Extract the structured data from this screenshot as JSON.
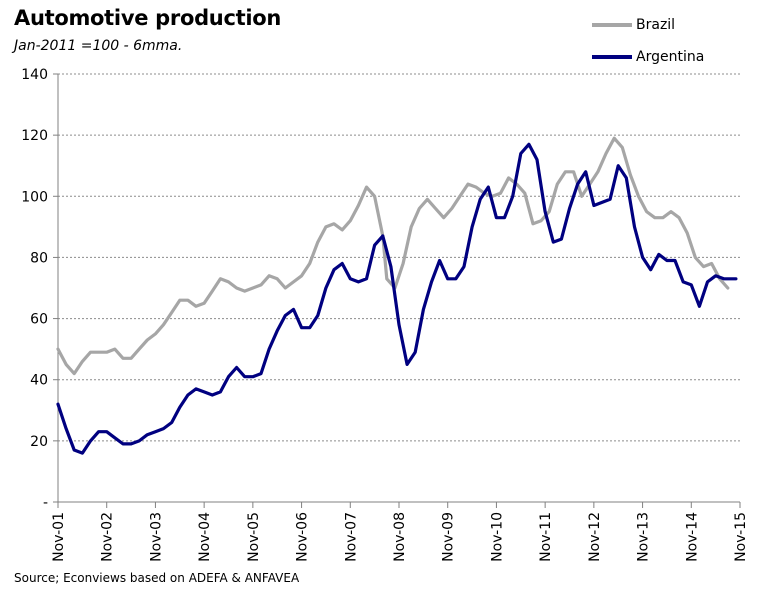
{
  "chart_data": {
    "type": "line",
    "title": "Automotive production",
    "subtitle": "Jan-2011 =100 - 6mma.",
    "source": "Source; Econviews based on ADEFA & ANFAVEA",
    "ylim": [
      0,
      140
    ],
    "yticks": [
      0,
      20,
      40,
      60,
      80,
      100,
      120,
      140
    ],
    "ytick_labels": [
      "-",
      "20",
      "40",
      "60",
      "80",
      "100",
      "120",
      "140"
    ],
    "grid": "horizontal",
    "legend_position": "top-right",
    "x_labels": [
      "Nov-01",
      "Nov-02",
      "Nov-03",
      "Nov-04",
      "Nov-05",
      "Nov-06",
      "Nov-07",
      "Nov-08",
      "Nov-09",
      "Nov-10",
      "Nov-11",
      "Nov-12",
      "Nov-13",
      "Nov-14",
      "Nov-15"
    ],
    "x_start": "2001-11",
    "x_end": "2015-11",
    "series": [
      {
        "name": "Brazil",
        "color": "#a6a6a6",
        "points": [
          [
            "2001-11",
            50
          ],
          [
            "2002-01",
            45
          ],
          [
            "2002-03",
            42
          ],
          [
            "2002-05",
            46
          ],
          [
            "2002-07",
            49
          ],
          [
            "2002-09",
            49
          ],
          [
            "2002-11",
            49
          ],
          [
            "2003-01",
            50
          ],
          [
            "2003-03",
            47
          ],
          [
            "2003-05",
            47
          ],
          [
            "2003-07",
            50
          ],
          [
            "2003-09",
            53
          ],
          [
            "2003-11",
            55
          ],
          [
            "2004-01",
            58
          ],
          [
            "2004-03",
            62
          ],
          [
            "2004-05",
            66
          ],
          [
            "2004-07",
            66
          ],
          [
            "2004-09",
            64
          ],
          [
            "2004-11",
            65
          ],
          [
            "2005-01",
            69
          ],
          [
            "2005-03",
            73
          ],
          [
            "2005-05",
            72
          ],
          [
            "2005-07",
            70
          ],
          [
            "2005-09",
            69
          ],
          [
            "2005-11",
            70
          ],
          [
            "2006-01",
            71
          ],
          [
            "2006-03",
            74
          ],
          [
            "2006-05",
            73
          ],
          [
            "2006-07",
            70
          ],
          [
            "2006-09",
            72
          ],
          [
            "2006-11",
            74
          ],
          [
            "2007-01",
            78
          ],
          [
            "2007-03",
            85
          ],
          [
            "2007-05",
            90
          ],
          [
            "2007-07",
            91
          ],
          [
            "2007-09",
            89
          ],
          [
            "2007-11",
            92
          ],
          [
            "2008-01",
            97
          ],
          [
            "2008-03",
            103
          ],
          [
            "2008-05",
            100
          ],
          [
            "2008-07",
            87
          ],
          [
            "2008-08",
            73
          ],
          [
            "2008-10",
            70
          ],
          [
            "2008-12",
            78
          ],
          [
            "2009-02",
            90
          ],
          [
            "2009-04",
            96
          ],
          [
            "2009-06",
            99
          ],
          [
            "2009-08",
            96
          ],
          [
            "2009-10",
            93
          ],
          [
            "2009-12",
            96
          ],
          [
            "2010-02",
            100
          ],
          [
            "2010-04",
            104
          ],
          [
            "2010-06",
            103
          ],
          [
            "2010-08",
            101
          ],
          [
            "2010-10",
            100
          ],
          [
            "2010-12",
            101
          ],
          [
            "2011-02",
            106
          ],
          [
            "2011-04",
            104
          ],
          [
            "2011-06",
            101
          ],
          [
            "2011-08",
            91
          ],
          [
            "2011-10",
            92
          ],
          [
            "2011-12",
            95
          ],
          [
            "2012-02",
            104
          ],
          [
            "2012-04",
            108
          ],
          [
            "2012-06",
            108
          ],
          [
            "2012-08",
            100
          ],
          [
            "2012-10",
            104
          ],
          [
            "2012-12",
            108
          ],
          [
            "2013-02",
            114
          ],
          [
            "2013-04",
            119
          ],
          [
            "2013-06",
            116
          ],
          [
            "2013-08",
            107
          ],
          [
            "2013-10",
            100
          ],
          [
            "2013-12",
            95
          ],
          [
            "2014-02",
            93
          ],
          [
            "2014-04",
            93
          ],
          [
            "2014-06",
            95
          ],
          [
            "2014-08",
            93
          ],
          [
            "2014-10",
            88
          ],
          [
            "2014-12",
            80
          ],
          [
            "2015-02",
            77
          ],
          [
            "2015-04",
            78
          ],
          [
            "2015-06",
            73
          ],
          [
            "2015-08",
            70
          ]
        ]
      },
      {
        "name": "Argentina",
        "color": "#000080",
        "points": [
          [
            "2001-11",
            32
          ],
          [
            "2002-01",
            24
          ],
          [
            "2002-03",
            17
          ],
          [
            "2002-05",
            16
          ],
          [
            "2002-07",
            20
          ],
          [
            "2002-09",
            23
          ],
          [
            "2002-11",
            23
          ],
          [
            "2003-01",
            21
          ],
          [
            "2003-03",
            19
          ],
          [
            "2003-05",
            19
          ],
          [
            "2003-07",
            20
          ],
          [
            "2003-09",
            22
          ],
          [
            "2003-11",
            23
          ],
          [
            "2004-01",
            24
          ],
          [
            "2004-03",
            26
          ],
          [
            "2004-05",
            31
          ],
          [
            "2004-07",
            35
          ],
          [
            "2004-09",
            37
          ],
          [
            "2004-11",
            36
          ],
          [
            "2005-01",
            35
          ],
          [
            "2005-03",
            36
          ],
          [
            "2005-05",
            41
          ],
          [
            "2005-07",
            44
          ],
          [
            "2005-09",
            41
          ],
          [
            "2005-11",
            41
          ],
          [
            "2006-01",
            42
          ],
          [
            "2006-03",
            50
          ],
          [
            "2006-05",
            56
          ],
          [
            "2006-07",
            61
          ],
          [
            "2006-09",
            63
          ],
          [
            "2006-11",
            57
          ],
          [
            "2007-01",
            57
          ],
          [
            "2007-03",
            61
          ],
          [
            "2007-05",
            70
          ],
          [
            "2007-07",
            76
          ],
          [
            "2007-09",
            78
          ],
          [
            "2007-11",
            73
          ],
          [
            "2008-01",
            72
          ],
          [
            "2008-03",
            73
          ],
          [
            "2008-05",
            84
          ],
          [
            "2008-07",
            87
          ],
          [
            "2008-09",
            77
          ],
          [
            "2008-11",
            58
          ],
          [
            "2009-01",
            45
          ],
          [
            "2009-03",
            49
          ],
          [
            "2009-05",
            63
          ],
          [
            "2009-07",
            72
          ],
          [
            "2009-09",
            79
          ],
          [
            "2009-11",
            73
          ],
          [
            "2010-01",
            73
          ],
          [
            "2010-03",
            77
          ],
          [
            "2010-05",
            90
          ],
          [
            "2010-07",
            99
          ],
          [
            "2010-09",
            103
          ],
          [
            "2010-11",
            93
          ],
          [
            "2011-01",
            93
          ],
          [
            "2011-03",
            100
          ],
          [
            "2011-05",
            114
          ],
          [
            "2011-07",
            117
          ],
          [
            "2011-09",
            112
          ],
          [
            "2011-11",
            95
          ],
          [
            "2012-01",
            85
          ],
          [
            "2012-03",
            86
          ],
          [
            "2012-05",
            96
          ],
          [
            "2012-07",
            104
          ],
          [
            "2012-09",
            108
          ],
          [
            "2012-11",
            97
          ],
          [
            "2013-01",
            98
          ],
          [
            "2013-03",
            99
          ],
          [
            "2013-05",
            110
          ],
          [
            "2013-07",
            106
          ],
          [
            "2013-09",
            90
          ],
          [
            "2013-11",
            80
          ],
          [
            "2014-01",
            76
          ],
          [
            "2014-03",
            81
          ],
          [
            "2014-05",
            79
          ],
          [
            "2014-07",
            79
          ],
          [
            "2014-09",
            72
          ],
          [
            "2014-11",
            71
          ],
          [
            "2015-01",
            64
          ],
          [
            "2015-03",
            72
          ],
          [
            "2015-05",
            74
          ],
          [
            "2015-07",
            73
          ],
          [
            "2015-10",
            73
          ]
        ]
      }
    ]
  }
}
